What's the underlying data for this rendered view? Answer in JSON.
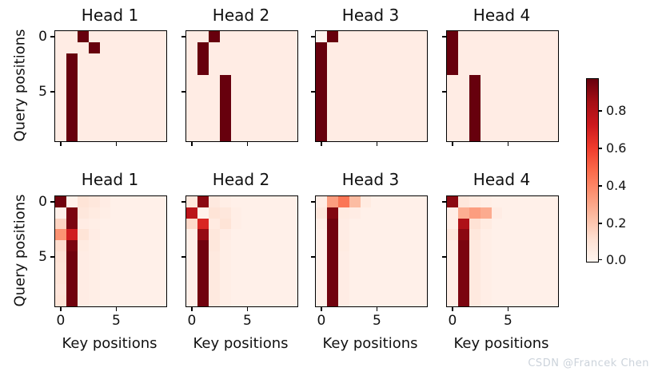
{
  "figure": {
    "background": "#ffffff"
  },
  "axes": {
    "xlabel": "Key positions",
    "ylabel": "Query positions",
    "xticks": [
      0,
      5
    ],
    "yticks": [
      0,
      5
    ],
    "xtick_labels": [
      "0",
      "5"
    ],
    "ytick_labels": [
      "0",
      "5"
    ]
  },
  "colorbar": {
    "colormap": "Reds",
    "vmin": 0.0,
    "vmax": 0.97,
    "ticks": [
      "0.8",
      "0.6",
      "0.4",
      "0.2",
      "0.0"
    ],
    "tick_values": [
      0.8,
      0.6,
      0.4,
      0.2,
      0.0
    ],
    "stops": [
      "#fff5f0",
      "#fee0d2",
      "#fcbba1",
      "#fc9272",
      "#fb6a4a",
      "#ef3b2c",
      "#cb181d",
      "#a50f15",
      "#67000d"
    ]
  },
  "watermark": {
    "text": "CSDN @Francek Chen",
    "color": "#ccd3db"
  },
  "chart_data": [
    {
      "type": "heatmap",
      "title": "Head 1",
      "values": [
        [
          0.05,
          0.05,
          0.97,
          0.05,
          0.05,
          0.05,
          0.05,
          0.05,
          0.05,
          0.05
        ],
        [
          0.05,
          0.05,
          0.05,
          0.97,
          0.05,
          0.05,
          0.05,
          0.05,
          0.05,
          0.05
        ],
        [
          0.05,
          0.97,
          0.05,
          0.05,
          0.05,
          0.05,
          0.05,
          0.05,
          0.05,
          0.05
        ],
        [
          0.05,
          0.97,
          0.05,
          0.05,
          0.05,
          0.05,
          0.05,
          0.05,
          0.05,
          0.05
        ],
        [
          0.05,
          0.97,
          0.05,
          0.05,
          0.05,
          0.05,
          0.05,
          0.05,
          0.05,
          0.05
        ],
        [
          0.05,
          0.97,
          0.05,
          0.05,
          0.05,
          0.05,
          0.05,
          0.05,
          0.05,
          0.05
        ],
        [
          0.05,
          0.97,
          0.05,
          0.05,
          0.05,
          0.05,
          0.05,
          0.05,
          0.05,
          0.05
        ],
        [
          0.05,
          0.97,
          0.05,
          0.05,
          0.05,
          0.05,
          0.05,
          0.05,
          0.05,
          0.05
        ],
        [
          0.05,
          0.97,
          0.05,
          0.05,
          0.05,
          0.05,
          0.05,
          0.05,
          0.05,
          0.05
        ],
        [
          0.05,
          0.97,
          0.05,
          0.05,
          0.05,
          0.05,
          0.05,
          0.05,
          0.05,
          0.05
        ]
      ]
    },
    {
      "type": "heatmap",
      "title": "Head 2",
      "values": [
        [
          0.05,
          0.05,
          0.97,
          0.05,
          0.05,
          0.05,
          0.05,
          0.05,
          0.05,
          0.05
        ],
        [
          0.05,
          0.97,
          0.05,
          0.05,
          0.05,
          0.05,
          0.05,
          0.05,
          0.05,
          0.05
        ],
        [
          0.05,
          0.97,
          0.05,
          0.05,
          0.05,
          0.05,
          0.05,
          0.05,
          0.05,
          0.05
        ],
        [
          0.05,
          0.97,
          0.05,
          0.05,
          0.05,
          0.05,
          0.05,
          0.05,
          0.05,
          0.05
        ],
        [
          0.05,
          0.05,
          0.05,
          0.97,
          0.05,
          0.05,
          0.05,
          0.05,
          0.05,
          0.05
        ],
        [
          0.05,
          0.05,
          0.05,
          0.97,
          0.05,
          0.05,
          0.05,
          0.05,
          0.05,
          0.05
        ],
        [
          0.05,
          0.05,
          0.05,
          0.97,
          0.05,
          0.05,
          0.05,
          0.05,
          0.05,
          0.05
        ],
        [
          0.05,
          0.05,
          0.05,
          0.97,
          0.05,
          0.05,
          0.05,
          0.05,
          0.05,
          0.05
        ],
        [
          0.05,
          0.05,
          0.05,
          0.97,
          0.05,
          0.05,
          0.05,
          0.05,
          0.05,
          0.05
        ],
        [
          0.05,
          0.05,
          0.05,
          0.97,
          0.05,
          0.05,
          0.05,
          0.05,
          0.05,
          0.05
        ]
      ]
    },
    {
      "type": "heatmap",
      "title": "Head 3",
      "values": [
        [
          0.0,
          0.97,
          0.05,
          0.05,
          0.05,
          0.05,
          0.05,
          0.05,
          0.05,
          0.05
        ],
        [
          0.97,
          0.05,
          0.05,
          0.05,
          0.05,
          0.05,
          0.05,
          0.05,
          0.05,
          0.05
        ],
        [
          0.97,
          0.05,
          0.05,
          0.05,
          0.05,
          0.05,
          0.05,
          0.05,
          0.05,
          0.05
        ],
        [
          0.97,
          0.05,
          0.05,
          0.05,
          0.05,
          0.05,
          0.05,
          0.05,
          0.05,
          0.05
        ],
        [
          0.97,
          0.05,
          0.05,
          0.05,
          0.05,
          0.05,
          0.05,
          0.05,
          0.05,
          0.05
        ],
        [
          0.97,
          0.05,
          0.05,
          0.05,
          0.05,
          0.05,
          0.05,
          0.05,
          0.05,
          0.05
        ],
        [
          0.97,
          0.05,
          0.05,
          0.05,
          0.05,
          0.05,
          0.05,
          0.05,
          0.05,
          0.05
        ],
        [
          0.97,
          0.05,
          0.05,
          0.05,
          0.05,
          0.05,
          0.05,
          0.05,
          0.05,
          0.05
        ],
        [
          0.97,
          0.05,
          0.05,
          0.05,
          0.05,
          0.05,
          0.05,
          0.05,
          0.05,
          0.05
        ],
        [
          0.97,
          0.05,
          0.05,
          0.05,
          0.05,
          0.05,
          0.05,
          0.05,
          0.05,
          0.05
        ]
      ]
    },
    {
      "type": "heatmap",
      "title": "Head 4",
      "values": [
        [
          0.97,
          0.05,
          0.05,
          0.05,
          0.05,
          0.05,
          0.05,
          0.05,
          0.05,
          0.05
        ],
        [
          0.97,
          0.05,
          0.05,
          0.05,
          0.05,
          0.05,
          0.05,
          0.05,
          0.05,
          0.05
        ],
        [
          0.97,
          0.05,
          0.05,
          0.05,
          0.05,
          0.05,
          0.05,
          0.05,
          0.05,
          0.05
        ],
        [
          0.97,
          0.05,
          0.05,
          0.05,
          0.05,
          0.05,
          0.05,
          0.05,
          0.05,
          0.05
        ],
        [
          0.05,
          0.05,
          0.97,
          0.05,
          0.05,
          0.05,
          0.05,
          0.05,
          0.05,
          0.05
        ],
        [
          0.05,
          0.05,
          0.97,
          0.05,
          0.05,
          0.05,
          0.05,
          0.05,
          0.05,
          0.05
        ],
        [
          0.05,
          0.05,
          0.97,
          0.05,
          0.05,
          0.05,
          0.05,
          0.05,
          0.05,
          0.05
        ],
        [
          0.05,
          0.05,
          0.97,
          0.05,
          0.05,
          0.05,
          0.05,
          0.05,
          0.05,
          0.05
        ],
        [
          0.05,
          0.05,
          0.97,
          0.05,
          0.05,
          0.05,
          0.05,
          0.05,
          0.05,
          0.05
        ],
        [
          0.05,
          0.05,
          0.97,
          0.05,
          0.05,
          0.05,
          0.05,
          0.05,
          0.05,
          0.05
        ]
      ]
    },
    {
      "type": "heatmap",
      "title": "Head 1",
      "values": [
        [
          0.95,
          0.02,
          0.1,
          0.08,
          0.05,
          0.03,
          0.03,
          0.03,
          0.03,
          0.03
        ],
        [
          0.03,
          0.93,
          0.08,
          0.06,
          0.04,
          0.03,
          0.03,
          0.03,
          0.03,
          0.03
        ],
        [
          0.16,
          0.93,
          0.05,
          0.04,
          0.03,
          0.03,
          0.03,
          0.03,
          0.03,
          0.03
        ],
        [
          0.36,
          0.71,
          0.1,
          0.05,
          0.03,
          0.03,
          0.03,
          0.03,
          0.03,
          0.03
        ],
        [
          0.13,
          0.93,
          0.06,
          0.04,
          0.03,
          0.03,
          0.03,
          0.03,
          0.03,
          0.03
        ],
        [
          0.11,
          0.95,
          0.05,
          0.04,
          0.03,
          0.03,
          0.03,
          0.03,
          0.03,
          0.03
        ],
        [
          0.1,
          0.95,
          0.05,
          0.04,
          0.03,
          0.03,
          0.03,
          0.03,
          0.03,
          0.03
        ],
        [
          0.1,
          0.95,
          0.05,
          0.04,
          0.03,
          0.03,
          0.03,
          0.03,
          0.03,
          0.03
        ],
        [
          0.09,
          0.95,
          0.05,
          0.04,
          0.03,
          0.03,
          0.03,
          0.03,
          0.03,
          0.03
        ],
        [
          0.1,
          0.95,
          0.05,
          0.04,
          0.03,
          0.03,
          0.03,
          0.03,
          0.03,
          0.03
        ]
      ]
    },
    {
      "type": "heatmap",
      "title": "Head 2",
      "values": [
        [
          0.08,
          0.9,
          0.07,
          0.04,
          0.03,
          0.03,
          0.03,
          0.03,
          0.03,
          0.03
        ],
        [
          0.78,
          0.02,
          0.1,
          0.08,
          0.04,
          0.03,
          0.03,
          0.03,
          0.03,
          0.03
        ],
        [
          0.14,
          0.68,
          0.06,
          0.1,
          0.04,
          0.03,
          0.03,
          0.03,
          0.03,
          0.03
        ],
        [
          0.04,
          0.88,
          0.08,
          0.05,
          0.03,
          0.03,
          0.03,
          0.03,
          0.03,
          0.03
        ],
        [
          0.03,
          0.95,
          0.08,
          0.04,
          0.03,
          0.03,
          0.03,
          0.03,
          0.03,
          0.03
        ],
        [
          0.03,
          0.95,
          0.07,
          0.04,
          0.03,
          0.03,
          0.03,
          0.03,
          0.03,
          0.03
        ],
        [
          0.03,
          0.95,
          0.07,
          0.04,
          0.03,
          0.03,
          0.03,
          0.03,
          0.03,
          0.03
        ],
        [
          0.03,
          0.95,
          0.07,
          0.04,
          0.03,
          0.03,
          0.03,
          0.03,
          0.03,
          0.03
        ],
        [
          0.03,
          0.95,
          0.07,
          0.04,
          0.03,
          0.03,
          0.03,
          0.03,
          0.03,
          0.03
        ],
        [
          0.03,
          0.95,
          0.07,
          0.04,
          0.03,
          0.03,
          0.03,
          0.03,
          0.03,
          0.03
        ]
      ]
    },
    {
      "type": "heatmap",
      "title": "Head 3",
      "values": [
        [
          0.05,
          0.33,
          0.45,
          0.24,
          0.06,
          0.03,
          0.03,
          0.03,
          0.03,
          0.03
        ],
        [
          0.08,
          0.92,
          0.06,
          0.05,
          0.03,
          0.03,
          0.03,
          0.03,
          0.03,
          0.03
        ],
        [
          0.04,
          0.95,
          0.05,
          0.03,
          0.03,
          0.03,
          0.03,
          0.03,
          0.03,
          0.03
        ],
        [
          0.03,
          0.95,
          0.05,
          0.03,
          0.03,
          0.03,
          0.03,
          0.03,
          0.03,
          0.03
        ],
        [
          0.03,
          0.95,
          0.06,
          0.03,
          0.03,
          0.03,
          0.03,
          0.03,
          0.03,
          0.03
        ],
        [
          0.03,
          0.95,
          0.05,
          0.03,
          0.03,
          0.03,
          0.03,
          0.03,
          0.03,
          0.03
        ],
        [
          0.03,
          0.95,
          0.05,
          0.03,
          0.03,
          0.03,
          0.03,
          0.03,
          0.03,
          0.03
        ],
        [
          0.03,
          0.95,
          0.05,
          0.03,
          0.03,
          0.03,
          0.03,
          0.03,
          0.03,
          0.03
        ],
        [
          0.03,
          0.95,
          0.05,
          0.03,
          0.03,
          0.03,
          0.03,
          0.03,
          0.03,
          0.03
        ],
        [
          0.03,
          0.95,
          0.05,
          0.03,
          0.03,
          0.03,
          0.03,
          0.03,
          0.03,
          0.03
        ]
      ]
    },
    {
      "type": "heatmap",
      "title": "Head 4",
      "values": [
        [
          0.9,
          0.08,
          0.06,
          0.04,
          0.03,
          0.03,
          0.03,
          0.03,
          0.03,
          0.03
        ],
        [
          0.04,
          0.28,
          0.33,
          0.29,
          0.05,
          0.03,
          0.03,
          0.03,
          0.03,
          0.03
        ],
        [
          0.04,
          0.82,
          0.11,
          0.06,
          0.03,
          0.03,
          0.03,
          0.03,
          0.03,
          0.03
        ],
        [
          0.08,
          0.9,
          0.08,
          0.04,
          0.03,
          0.03,
          0.03,
          0.03,
          0.03,
          0.03
        ],
        [
          0.04,
          0.93,
          0.07,
          0.04,
          0.03,
          0.03,
          0.03,
          0.03,
          0.03,
          0.03
        ],
        [
          0.04,
          0.93,
          0.07,
          0.04,
          0.03,
          0.03,
          0.03,
          0.03,
          0.03,
          0.03
        ],
        [
          0.04,
          0.93,
          0.07,
          0.04,
          0.03,
          0.03,
          0.03,
          0.03,
          0.03,
          0.03
        ],
        [
          0.04,
          0.93,
          0.07,
          0.04,
          0.03,
          0.03,
          0.03,
          0.03,
          0.03,
          0.03
        ],
        [
          0.04,
          0.93,
          0.07,
          0.04,
          0.03,
          0.03,
          0.03,
          0.03,
          0.03,
          0.03
        ],
        [
          0.04,
          0.93,
          0.07,
          0.04,
          0.03,
          0.03,
          0.03,
          0.03,
          0.03,
          0.03
        ]
      ]
    }
  ]
}
